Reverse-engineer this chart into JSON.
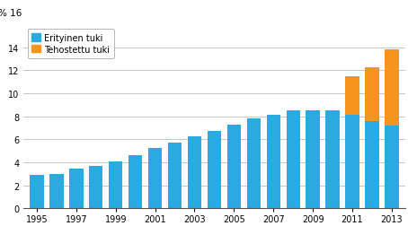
{
  "years": [
    1995,
    1996,
    1997,
    1998,
    1999,
    2000,
    2001,
    2002,
    2003,
    2004,
    2005,
    2006,
    2007,
    2008,
    2009,
    2010,
    2011,
    2012,
    2013
  ],
  "erityinen_tuki": [
    2.9,
    3.0,
    3.45,
    3.7,
    4.1,
    4.65,
    5.25,
    5.7,
    6.3,
    6.7,
    7.3,
    7.85,
    8.15,
    8.5,
    8.5,
    8.5,
    8.1,
    7.55,
    7.2
  ],
  "tehostettu_tuki": [
    0,
    0,
    0,
    0,
    0,
    0,
    0,
    0,
    0,
    0,
    0,
    0,
    0,
    0,
    0,
    0,
    3.4,
    4.75,
    6.6
  ],
  "erityinen_color": "#29ABE2",
  "tehostettu_color": "#F7941D",
  "ylim": [
    0,
    16
  ],
  "yticks": [
    0,
    2,
    4,
    6,
    8,
    10,
    12,
    14
  ],
  "xtick_years": [
    1995,
    1997,
    1999,
    2001,
    2003,
    2005,
    2007,
    2009,
    2011,
    2013
  ],
  "ylabel_text": "% 16",
  "legend_erityinen": "Erityinen tuki",
  "legend_tehostettu": "Tehostettu tuki",
  "grid_color": "#BBBBBB",
  "bar_width": 0.7
}
